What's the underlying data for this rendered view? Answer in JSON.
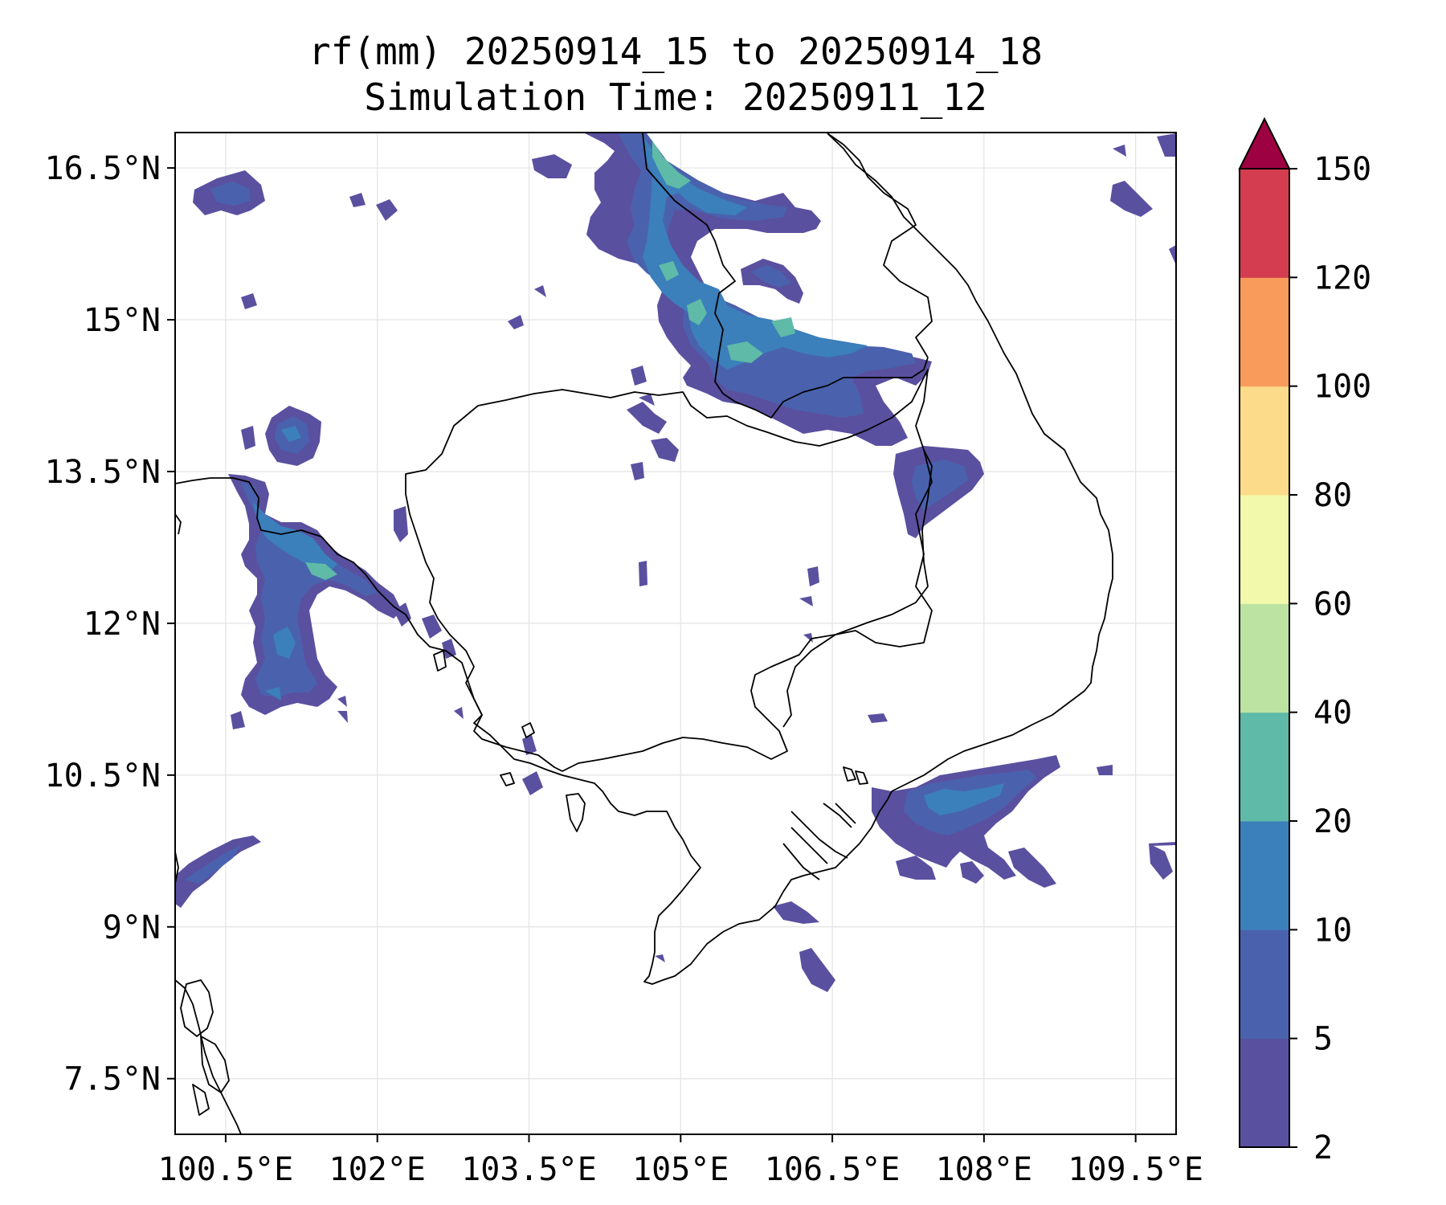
{
  "title": {
    "line1": "rf(mm) 20250914_15 to 20250914_18",
    "line2": "Simulation Time: 20250911_12"
  },
  "map": {
    "lon_range": [
      100.0,
      109.9
    ],
    "lat_range": [
      6.95,
      16.85
    ],
    "x_ticks": [
      {
        "value": 100.5,
        "label": "100.5°E"
      },
      {
        "value": 102.0,
        "label": "102°E"
      },
      {
        "value": 103.5,
        "label": "103.5°E"
      },
      {
        "value": 105.0,
        "label": "105°E"
      },
      {
        "value": 106.5,
        "label": "106.5°E"
      },
      {
        "value": 108.0,
        "label": "108°E"
      },
      {
        "value": 109.5,
        "label": "109.5°E"
      }
    ],
    "y_ticks": [
      {
        "value": 16.5,
        "label": "16.5°N"
      },
      {
        "value": 15.0,
        "label": "15°N"
      },
      {
        "value": 13.5,
        "label": "13.5°N"
      },
      {
        "value": 12.0,
        "label": "12°N"
      },
      {
        "value": 10.5,
        "label": "10.5°N"
      },
      {
        "value": 9.0,
        "label": "9°N"
      },
      {
        "value": 7.5,
        "label": "7.5°N"
      }
    ],
    "grid": true
  },
  "colorbar": {
    "levels": [
      "2",
      "5",
      "10",
      "20",
      "40",
      "60",
      "80",
      "100",
      "120",
      "150"
    ],
    "colors": [
      "#5a50a0",
      "#4a62ad",
      "#3b7fbb",
      "#5fbaa7",
      "#bde3a2",
      "#f3f9aa",
      "#fcdc8b",
      "#f99b5b",
      "#d43d50",
      "#9e0142"
    ],
    "extend": "max"
  },
  "chart_data": {
    "type": "heatmap",
    "variable": "rf(mm)",
    "units": "mm",
    "ranges": [
      "2-5",
      "5-10",
      "10-20",
      "20-40",
      "40-60"
    ],
    "lon_range": [
      100.0,
      109.9
    ],
    "lat_range": [
      6.95,
      16.85
    ],
    "regions": [
      {
        "lon": [
          101.0,
          103.0
        ],
        "lat": [
          10.9,
          13.7
        ],
        "rf": "5-20"
      },
      {
        "lon": [
          104.0,
          106.0
        ],
        "lat": [
          14.5,
          16.8
        ],
        "rf": "10-40"
      },
      {
        "lon": [
          105.4,
          107.9
        ],
        "lat": [
          13.9,
          15.4
        ],
        "rf": "10-40"
      },
      {
        "lon": [
          107.2,
          108.1
        ],
        "lat": [
          12.9,
          13.9
        ],
        "rf": "5-20"
      },
      {
        "lon": [
          107.5,
          109.0
        ],
        "lat": [
          9.5,
          10.8
        ],
        "rf": "5-20"
      },
      {
        "lon": [
          101.0,
          101.5
        ],
        "lat": [
          13.9,
          14.5
        ],
        "rf": "5-20"
      },
      {
        "lon": [
          100.0,
          100.8
        ],
        "lat": [
          9.3,
          10.0
        ],
        "rf": "5-10"
      },
      {
        "lon": [
          100.2,
          101.0
        ],
        "lat": [
          16.2,
          16.6
        ],
        "rf": "5-10"
      },
      {
        "lon": [
          106.2,
          106.5
        ],
        "lat": [
          8.5,
          8.9
        ],
        "rf": "5-10"
      }
    ]
  }
}
